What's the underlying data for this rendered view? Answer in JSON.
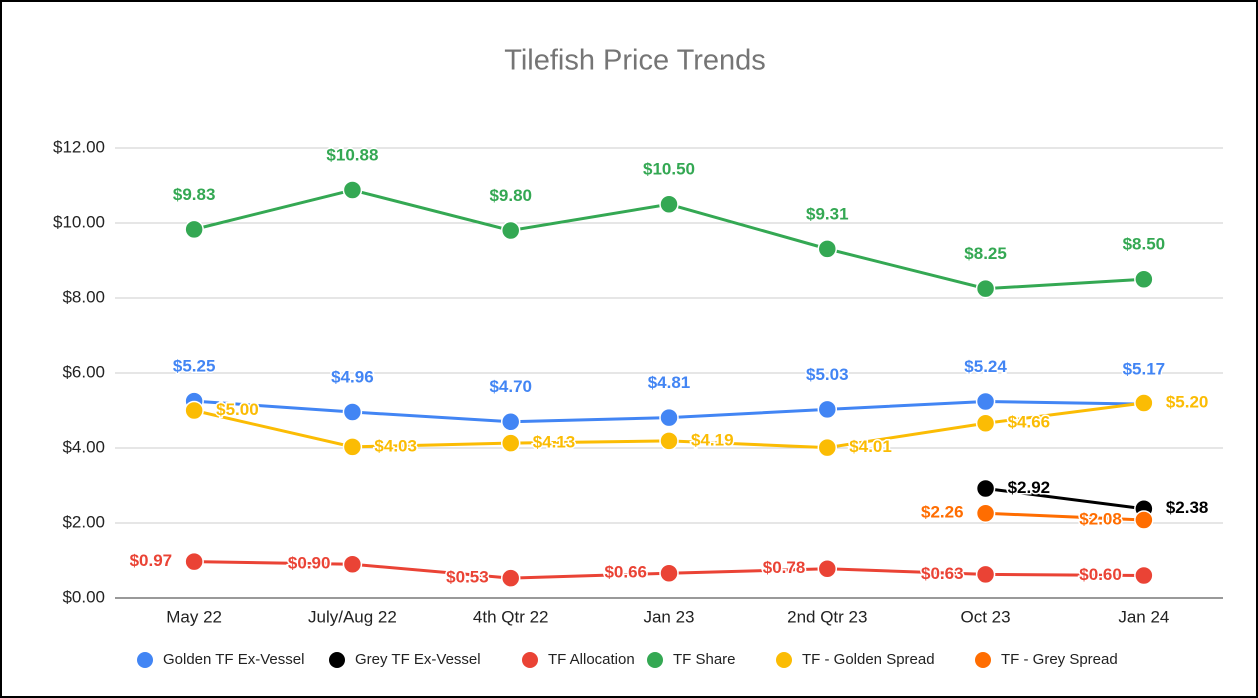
{
  "chart_data": {
    "type": "line",
    "title": "Tilefish Price Trends",
    "categories": [
      "May 22",
      "July/Aug 22",
      "4th Qtr 22",
      "Jan 23",
      "2nd Qtr 23",
      "Oct 23",
      "Jan 24"
    ],
    "series": [
      {
        "name": "Golden TF Ex-Vessel",
        "color": "#4285f4",
        "values": [
          5.25,
          4.96,
          4.7,
          4.81,
          5.03,
          5.24,
          5.17
        ],
        "value_labels": [
          "$5.25",
          "$4.96",
          "$4.70",
          "$4.81",
          "$5.03",
          "$5.24",
          "$5.17"
        ]
      },
      {
        "name": "Grey TF Ex-Vessel",
        "color": "#000000",
        "values": [
          null,
          null,
          null,
          null,
          null,
          2.92,
          2.38
        ],
        "value_labels": [
          null,
          null,
          null,
          null,
          null,
          "$2.92",
          "$2.38"
        ]
      },
      {
        "name": "TF Allocation",
        "color": "#ea4335",
        "values": [
          0.97,
          0.9,
          0.53,
          0.66,
          0.78,
          0.63,
          0.6
        ],
        "value_labels": [
          "$0.97",
          "$0.90",
          "$0.53",
          "$0.66",
          "$0.78",
          "$0.63",
          "$0.60"
        ]
      },
      {
        "name": "TF Share",
        "color": "#34a853",
        "values": [
          9.83,
          10.88,
          9.8,
          10.5,
          9.31,
          8.25,
          8.5
        ],
        "value_labels": [
          "$9.83",
          "$10.88",
          "$9.80",
          "$10.50",
          "$9.31",
          "$8.25",
          "$8.50"
        ]
      },
      {
        "name": "TF - Golden Spread",
        "color": "#fbbc04",
        "values": [
          5.0,
          4.03,
          4.13,
          4.19,
          4.01,
          4.66,
          5.2
        ],
        "value_labels": [
          "$5.00",
          "$4.03",
          "$4.13",
          "$4.19",
          "$4.01",
          "$4.66",
          "$5.20"
        ]
      },
      {
        "name": "TF - Grey Spread",
        "color": "#ff6d01",
        "values": [
          null,
          null,
          null,
          null,
          null,
          2.26,
          2.08
        ],
        "value_labels": [
          null,
          null,
          null,
          null,
          null,
          "$2.26",
          "$2.08"
        ]
      }
    ],
    "ylim": [
      0,
      12
    ],
    "yticks": [
      {
        "value": 0,
        "label": "$0.00"
      },
      {
        "value": 2,
        "label": "$2.00"
      },
      {
        "value": 4,
        "label": "$4.00"
      },
      {
        "value": 6,
        "label": "$6.00"
      },
      {
        "value": 8,
        "label": "$8.00"
      },
      {
        "value": 10,
        "label": "$10.00"
      },
      {
        "value": 12,
        "label": "$12.00"
      }
    ],
    "grid": true,
    "legend": "bottom"
  }
}
